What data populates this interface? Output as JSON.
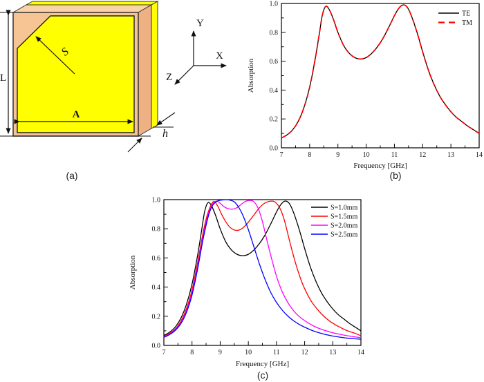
{
  "figure": {
    "panel_a_label": "(a)",
    "panel_b_label": "(b)",
    "panel_c_label": "(c)"
  },
  "diagram": {
    "labels": {
      "length": "L",
      "width": "A",
      "chamfer": "S",
      "thickness": "h",
      "axis_x": "X",
      "axis_y": "Y",
      "axis_z": "Z"
    },
    "colors": {
      "substrate_front": "#F7C493",
      "substrate_top": "#FAD3A8",
      "substrate_side": "#EFB184",
      "metal": "#FFFF00",
      "outline": "#333333"
    }
  },
  "chart_data": [
    {
      "id": "b",
      "type": "line",
      "title": "",
      "xlabel": "Frequency [GHz]",
      "ylabel": "Absorption",
      "xlim": [
        7,
        14
      ],
      "ylim": [
        0,
        1
      ],
      "xticks": [
        7,
        8,
        9,
        10,
        11,
        12,
        13,
        14
      ],
      "yticks": [
        0,
        0.2,
        0.4,
        0.6,
        0.8,
        1.0
      ],
      "ytick_labels": [
        "0.0",
        "0.2",
        "0.4",
        "0.6",
        "0.8",
        "1.0"
      ],
      "minor_x": 0.5,
      "minor_y": 0.1,
      "grid": false,
      "legend_position": "top-right",
      "series": [
        {
          "name": "TE",
          "color": "#000000",
          "style": "solid",
          "x": [
            7,
            7.2,
            7.4,
            7.6,
            7.8,
            8,
            8.2,
            8.35,
            8.45,
            8.57,
            8.7,
            8.85,
            9,
            9.2,
            9.4,
            9.6,
            9.8,
            10,
            10.2,
            10.4,
            10.6,
            10.8,
            11,
            11.15,
            11.3,
            11.45,
            11.6,
            11.8,
            12,
            12.2,
            12.4,
            12.6,
            12.8,
            13,
            13.2,
            13.4,
            13.6,
            13.8,
            14
          ],
          "y": [
            0.068,
            0.09,
            0.125,
            0.185,
            0.28,
            0.42,
            0.62,
            0.8,
            0.92,
            0.98,
            0.955,
            0.885,
            0.8,
            0.71,
            0.655,
            0.625,
            0.615,
            0.625,
            0.655,
            0.7,
            0.76,
            0.835,
            0.915,
            0.965,
            0.99,
            0.975,
            0.915,
            0.8,
            0.665,
            0.54,
            0.44,
            0.36,
            0.3,
            0.25,
            0.21,
            0.18,
            0.15,
            0.125,
            0.1
          ]
        },
        {
          "name": "TM",
          "color": "#FF0000",
          "style": "dashed",
          "x": [
            7,
            7.2,
            7.4,
            7.6,
            7.8,
            8,
            8.2,
            8.35,
            8.45,
            8.57,
            8.7,
            8.85,
            9,
            9.2,
            9.4,
            9.6,
            9.8,
            10,
            10.2,
            10.4,
            10.6,
            10.8,
            11,
            11.15,
            11.3,
            11.45,
            11.6,
            11.8,
            12,
            12.2,
            12.4,
            12.6,
            12.8,
            13,
            13.2,
            13.4,
            13.6,
            13.8,
            14
          ],
          "y": [
            0.068,
            0.09,
            0.125,
            0.185,
            0.28,
            0.42,
            0.62,
            0.8,
            0.92,
            0.98,
            0.955,
            0.885,
            0.8,
            0.71,
            0.655,
            0.625,
            0.615,
            0.625,
            0.655,
            0.7,
            0.76,
            0.835,
            0.915,
            0.965,
            0.99,
            0.975,
            0.915,
            0.8,
            0.665,
            0.54,
            0.44,
            0.36,
            0.3,
            0.25,
            0.21,
            0.18,
            0.15,
            0.125,
            0.1
          ]
        }
      ]
    },
    {
      "id": "c",
      "type": "line",
      "title": "",
      "xlabel": "Frequency [GHz]",
      "ylabel": "Absorption",
      "xlim": [
        7,
        14
      ],
      "ylim": [
        0,
        1
      ],
      "xticks": [
        7,
        8,
        9,
        10,
        11,
        12,
        13,
        14
      ],
      "yticks": [
        0,
        0.2,
        0.4,
        0.6,
        0.8,
        1.0
      ],
      "ytick_labels": [
        "0.0",
        "0.2",
        "0.4",
        "0.6",
        "0.8",
        "1.0"
      ],
      "minor_x": 0.5,
      "minor_y": 0.1,
      "grid": false,
      "legend_position": "top-right",
      "series": [
        {
          "name": "S=1.0mm",
          "color": "#000000",
          "style": "solid",
          "x": [
            7,
            7.2,
            7.4,
            7.6,
            7.8,
            8,
            8.2,
            8.35,
            8.45,
            8.57,
            8.7,
            8.85,
            9,
            9.2,
            9.4,
            9.6,
            9.8,
            10,
            10.2,
            10.4,
            10.6,
            10.8,
            11,
            11.15,
            11.3,
            11.45,
            11.6,
            11.8,
            12,
            12.2,
            12.4,
            12.6,
            12.8,
            13,
            13.2,
            13.4,
            13.6,
            13.8,
            14
          ],
          "y": [
            0.068,
            0.09,
            0.125,
            0.185,
            0.28,
            0.42,
            0.62,
            0.8,
            0.92,
            0.98,
            0.955,
            0.885,
            0.8,
            0.71,
            0.655,
            0.625,
            0.615,
            0.625,
            0.655,
            0.7,
            0.76,
            0.835,
            0.915,
            0.965,
            0.99,
            0.975,
            0.915,
            0.8,
            0.665,
            0.54,
            0.44,
            0.36,
            0.3,
            0.25,
            0.21,
            0.18,
            0.15,
            0.125,
            0.1
          ]
        },
        {
          "name": "S=1.5mm",
          "color": "#FF0000",
          "style": "solid",
          "x": [
            7,
            7.2,
            7.4,
            7.6,
            7.8,
            8,
            8.2,
            8.4,
            8.55,
            8.75,
            8.9,
            9.05,
            9.2,
            9.35,
            9.5,
            9.65,
            9.8,
            10,
            10.2,
            10.4,
            10.6,
            10.85,
            11,
            11.15,
            11.3,
            11.5,
            11.7,
            11.9,
            12.1,
            12.3,
            12.6,
            12.9,
            13.2,
            13.5,
            13.8,
            14
          ],
          "y": [
            0.062,
            0.082,
            0.112,
            0.165,
            0.25,
            0.38,
            0.57,
            0.78,
            0.9,
            0.985,
            0.96,
            0.9,
            0.848,
            0.81,
            0.792,
            0.79,
            0.805,
            0.845,
            0.895,
            0.945,
            0.978,
            0.99,
            0.975,
            0.93,
            0.845,
            0.69,
            0.55,
            0.435,
            0.35,
            0.285,
            0.215,
            0.165,
            0.13,
            0.102,
            0.082,
            0.066
          ]
        },
        {
          "name": "S=2.0mm",
          "color": "#FF00FF",
          "style": "solid",
          "x": [
            7,
            7.2,
            7.4,
            7.6,
            7.8,
            8,
            8.2,
            8.4,
            8.6,
            8.75,
            8.88,
            9,
            9.15,
            9.3,
            9.45,
            9.6,
            9.75,
            9.9,
            10.05,
            10.2,
            10.35,
            10.5,
            10.65,
            10.8,
            11,
            11.2,
            11.4,
            11.6,
            11.8,
            12,
            12.3,
            12.6,
            12.9,
            13.2,
            13.5,
            13.8,
            14
          ],
          "y": [
            0.058,
            0.078,
            0.107,
            0.155,
            0.235,
            0.36,
            0.545,
            0.755,
            0.915,
            0.975,
            0.99,
            0.975,
            0.95,
            0.937,
            0.935,
            0.945,
            0.968,
            0.988,
            0.995,
            0.985,
            0.94,
            0.85,
            0.73,
            0.615,
            0.475,
            0.37,
            0.295,
            0.24,
            0.2,
            0.17,
            0.135,
            0.11,
            0.092,
            0.078,
            0.067,
            0.058,
            0.052
          ]
        },
        {
          "name": "S=2.5mm",
          "color": "#0000FF",
          "style": "solid",
          "x": [
            7,
            7.2,
            7.4,
            7.6,
            7.8,
            8,
            8.2,
            8.4,
            8.6,
            8.75,
            8.9,
            9.1,
            9.3,
            9.5,
            9.65,
            9.8,
            10,
            10.2,
            10.4,
            10.6,
            10.8,
            11,
            11.2,
            11.4,
            11.6,
            11.8,
            12,
            12.3,
            12.6,
            12.9,
            13.2,
            13.5,
            13.8,
            14
          ],
          "y": [
            0.055,
            0.074,
            0.102,
            0.148,
            0.225,
            0.345,
            0.525,
            0.735,
            0.9,
            0.965,
            0.99,
            0.998,
            0.998,
            0.985,
            0.95,
            0.895,
            0.795,
            0.675,
            0.555,
            0.45,
            0.362,
            0.295,
            0.243,
            0.202,
            0.17,
            0.145,
            0.125,
            0.1,
            0.082,
            0.068,
            0.058,
            0.05,
            0.045,
            0.042
          ]
        }
      ]
    }
  ]
}
